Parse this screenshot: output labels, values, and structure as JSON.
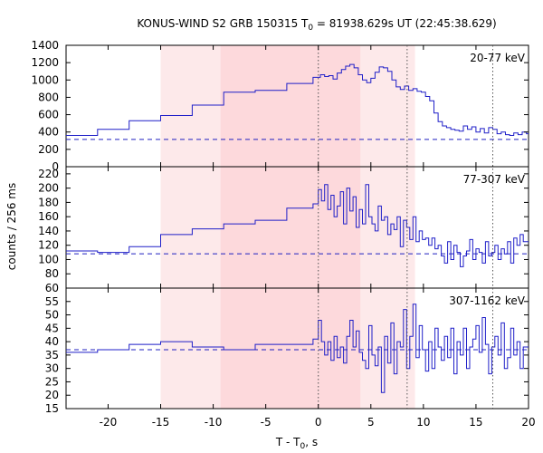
{
  "chart_data": {
    "type": "line",
    "title": {
      "prefix": "KONUS-WIND S2 GRB 150315 T",
      "sub": "0",
      "suffix": " = 81938.629s UT (22:45:38.629)"
    },
    "xlabel": {
      "prefix": "T - T",
      "sub": "0",
      "suffix": ", s"
    },
    "ylabel": "counts / 256 ms",
    "xlim": [
      -24,
      20
    ],
    "xticks": [
      -20,
      -15,
      -10,
      -5,
      0,
      5,
      10,
      15,
      20
    ],
    "shaded_regions": [
      {
        "x0": -15.0,
        "x1": 9.2,
        "color": "#fde9ea"
      },
      {
        "x0": -9.3,
        "x1": 4.0,
        "color": "#fdd9dc"
      }
    ],
    "vertical_markers": [
      0.0,
      8.45,
      16.6
    ],
    "colors": {
      "series": "#1f1fc8",
      "background_line": "#2020c0",
      "marker": "#555555"
    },
    "panels": [
      {
        "name": "20-77 keV",
        "ylim": [
          0,
          1400
        ],
        "yticks": [
          0,
          200,
          400,
          600,
          800,
          1000,
          1200,
          1400
        ],
        "background": 315,
        "x": [
          -24.0,
          -21.0,
          -18.0,
          -15.0,
          -12.0,
          -9.0,
          -6.0,
          -3.0,
          -0.5,
          0.2,
          0.6,
          1.0,
          1.4,
          1.8,
          2.2,
          2.6,
          3.0,
          3.4,
          3.8,
          4.2,
          4.6,
          5.0,
          5.4,
          5.8,
          6.2,
          6.6,
          7.0,
          7.4,
          7.8,
          8.2,
          8.6,
          9.0,
          9.4,
          9.8,
          10.2,
          10.6,
          11.0,
          11.4,
          11.8,
          12.2,
          12.6,
          13.0,
          13.4,
          13.8,
          14.2,
          14.6,
          15.0,
          15.4,
          15.8,
          16.2,
          16.6,
          17.0,
          17.4,
          17.8,
          18.2,
          18.6,
          19.0,
          19.4,
          19.8
        ],
        "values": [
          360,
          430,
          530,
          590,
          710,
          860,
          880,
          960,
          1030,
          1060,
          1040,
          1050,
          1010,
          1080,
          1120,
          1160,
          1180,
          1140,
          1060,
          1000,
          970,
          1020,
          1090,
          1150,
          1140,
          1100,
          1000,
          920,
          890,
          930,
          880,
          900,
          870,
          860,
          810,
          760,
          620,
          520,
          470,
          450,
          430,
          420,
          410,
          470,
          430,
          460,
          400,
          440,
          390,
          450,
          430,
          380,
          400,
          370,
          360,
          390,
          370,
          400,
          380
        ]
      },
      {
        "name": "77-307 keV",
        "ylim": [
          60,
          230
        ],
        "yticks": [
          60,
          80,
          100,
          120,
          140,
          160,
          180,
          200,
          220
        ],
        "background": 108,
        "x": [
          -24.0,
          -21.0,
          -18.0,
          -15.0,
          -12.0,
          -9.0,
          -6.0,
          -3.0,
          -0.5,
          0.0,
          0.3,
          0.6,
          0.9,
          1.2,
          1.5,
          1.8,
          2.1,
          2.4,
          2.7,
          3.0,
          3.3,
          3.6,
          3.9,
          4.2,
          4.5,
          4.8,
          5.1,
          5.4,
          5.7,
          6.0,
          6.3,
          6.6,
          6.9,
          7.2,
          7.5,
          7.8,
          8.1,
          8.4,
          8.7,
          9.0,
          9.3,
          9.6,
          9.9,
          10.2,
          10.5,
          10.8,
          11.1,
          11.4,
          11.7,
          12.0,
          12.3,
          12.6,
          12.9,
          13.2,
          13.5,
          13.8,
          14.1,
          14.4,
          14.7,
          15.0,
          15.3,
          15.6,
          15.9,
          16.2,
          16.5,
          16.8,
          17.1,
          17.4,
          17.7,
          18.0,
          18.3,
          18.6,
          18.9,
          19.2,
          19.5
        ],
        "values": [
          112,
          110,
          118,
          135,
          143,
          150,
          155,
          172,
          178,
          198,
          182,
          205,
          170,
          190,
          160,
          175,
          195,
          150,
          200,
          168,
          188,
          145,
          170,
          150,
          205,
          160,
          150,
          140,
          175,
          155,
          160,
          135,
          150,
          142,
          160,
          118,
          155,
          145,
          128,
          160,
          125,
          140,
          128,
          130,
          120,
          130,
          115,
          120,
          105,
          95,
          125,
          100,
          120,
          110,
          90,
          105,
          112,
          128,
          100,
          115,
          110,
          95,
          125,
          105,
          110,
          120,
          100,
          115,
          108,
          125,
          95,
          130,
          120,
          135,
          125
        ]
      },
      {
        "name": "307-1162 keV",
        "ylim": [
          15,
          60
        ],
        "yticks": [
          15,
          20,
          25,
          30,
          35,
          40,
          45,
          50,
          55
        ],
        "background": 37,
        "x": [
          -24.0,
          -21.0,
          -18.0,
          -15.0,
          -12.0,
          -9.0,
          -6.0,
          -3.0,
          -0.5,
          0.0,
          0.3,
          0.6,
          0.9,
          1.2,
          1.5,
          1.8,
          2.1,
          2.4,
          2.7,
          3.0,
          3.3,
          3.6,
          3.9,
          4.2,
          4.5,
          4.8,
          5.1,
          5.4,
          5.7,
          6.0,
          6.3,
          6.6,
          6.9,
          7.2,
          7.5,
          7.8,
          8.1,
          8.4,
          8.7,
          9.0,
          9.3,
          9.6,
          9.9,
          10.2,
          10.5,
          10.8,
          11.1,
          11.4,
          11.7,
          12.0,
          12.3,
          12.6,
          12.9,
          13.2,
          13.5,
          13.8,
          14.1,
          14.4,
          14.7,
          15.0,
          15.3,
          15.6,
          15.9,
          16.2,
          16.5,
          16.8,
          17.1,
          17.4,
          17.7,
          18.0,
          18.3,
          18.6,
          18.9,
          19.2,
          19.5
        ],
        "values": [
          36,
          37,
          39,
          40,
          38,
          37,
          39,
          39,
          41,
          48,
          40,
          35,
          40,
          33,
          42,
          34,
          38,
          32,
          42,
          48,
          38,
          44,
          36,
          33,
          30,
          46,
          35,
          31,
          38,
          21,
          42,
          32,
          47,
          28,
          40,
          38,
          52,
          30,
          42,
          54,
          34,
          46,
          37,
          29,
          40,
          30,
          45,
          38,
          33,
          42,
          34,
          45,
          28,
          40,
          35,
          45,
          30,
          38,
          41,
          46,
          36,
          49,
          39,
          28,
          38,
          42,
          35,
          47,
          30,
          34,
          45,
          35,
          40,
          30,
          38
        ]
      }
    ]
  }
}
